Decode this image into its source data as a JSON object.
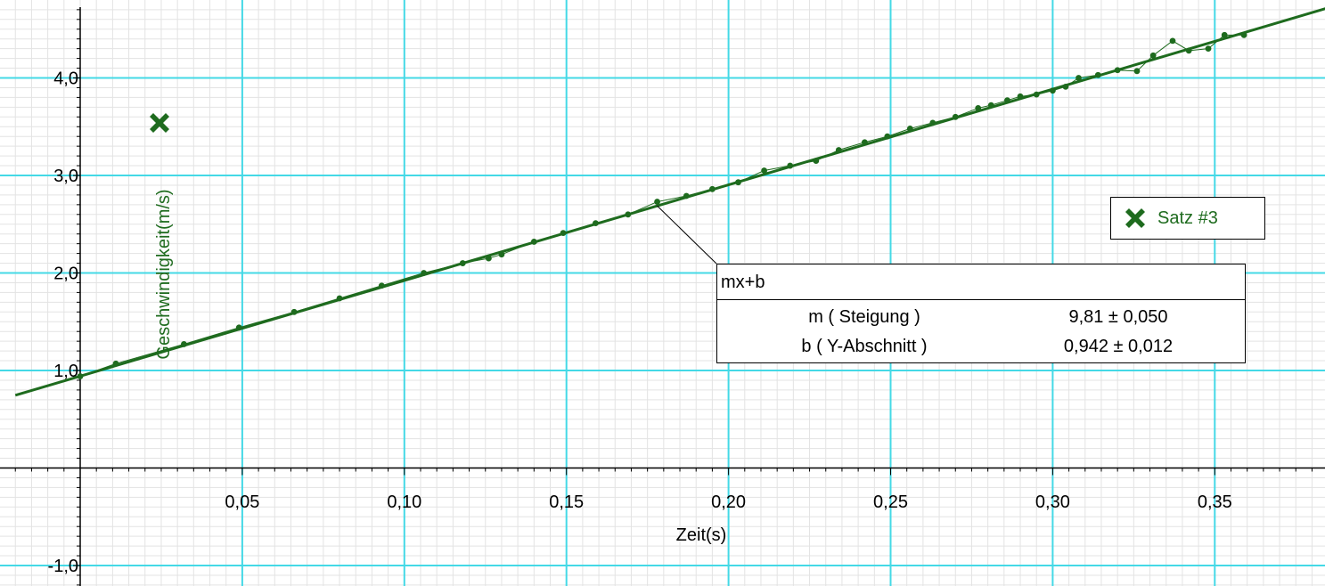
{
  "chart_data": {
    "type": "scatter",
    "xlabel": "Zeit(s)",
    "ylabel": "Geschwindigkeit(m/s)",
    "xlim": [
      -0.02,
      0.385
    ],
    "ylim": [
      -1.2,
      4.75
    ],
    "x_ticks": [
      "0,05",
      "0,10",
      "0,15",
      "0,20",
      "0,25",
      "0,30",
      "0,35"
    ],
    "x_tick_values": [
      0.05,
      0.1,
      0.15,
      0.2,
      0.25,
      0.3,
      0.35
    ],
    "y_ticks": [
      "-1,0",
      "1,0",
      "2,0",
      "3,0",
      "4,0"
    ],
    "y_tick_values": [
      -1.0,
      1.0,
      2.0,
      3.0,
      4.0
    ],
    "grid": true,
    "legend_position": "right",
    "series": [
      {
        "name": "Satz #3",
        "color": "#1e6b1e",
        "x": [
          0.0,
          0.011,
          0.032,
          0.049,
          0.066,
          0.08,
          0.093,
          0.106,
          0.118,
          0.126,
          0.13,
          0.14,
          0.149,
          0.159,
          0.169,
          0.178,
          0.187,
          0.195,
          0.203,
          0.211,
          0.219,
          0.227,
          0.234,
          0.242,
          0.249,
          0.256,
          0.263,
          0.27,
          0.277,
          0.281,
          0.286,
          0.29,
          0.295,
          0.3,
          0.304,
          0.308,
          0.314,
          0.32,
          0.326,
          0.331,
          0.337,
          0.342,
          0.348,
          0.353,
          0.359
        ],
        "y": [
          0.94,
          1.07,
          1.27,
          1.44,
          1.6,
          1.74,
          1.87,
          2.0,
          2.1,
          2.15,
          2.19,
          2.32,
          2.41,
          2.51,
          2.6,
          2.73,
          2.79,
          2.86,
          2.93,
          3.05,
          3.1,
          3.15,
          3.26,
          3.34,
          3.4,
          3.48,
          3.54,
          3.6,
          3.69,
          3.72,
          3.77,
          3.81,
          3.83,
          3.87,
          3.91,
          4.0,
          4.03,
          4.08,
          4.07,
          4.23,
          4.38,
          4.28,
          4.3,
          4.44,
          4.44
        ]
      }
    ],
    "fit": {
      "label": "mx+b",
      "m": 9.81,
      "b": 0.942,
      "params": [
        {
          "name": "m ( Steigung )",
          "value": "9,81 ± 0,050"
        },
        {
          "name": "b ( Y-Abschnitt )",
          "value": "0,942 ± 0,012"
        }
      ]
    },
    "annotation_x": 0.178
  },
  "colors": {
    "major_grid": "#44d9e6",
    "minor_grid": "#e3e3e3",
    "series": "#1e6b1e",
    "axis": "#000000"
  },
  "legend_icon": "x-cross-icon"
}
